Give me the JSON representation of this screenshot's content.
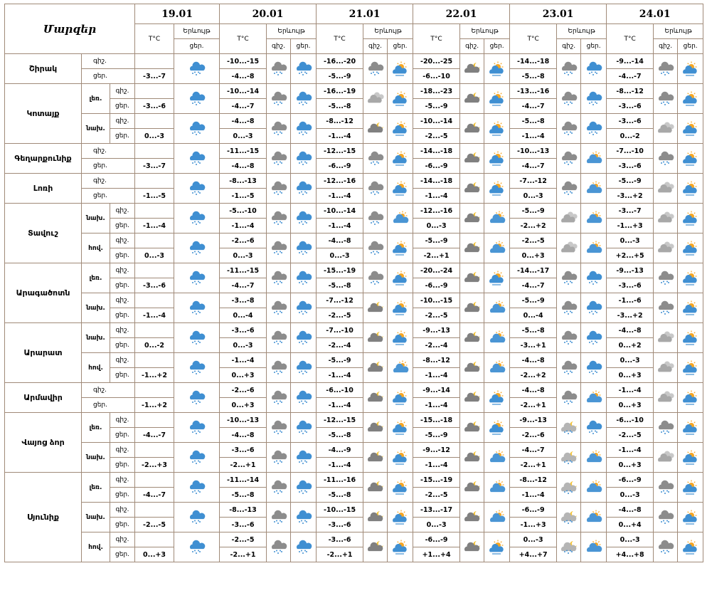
{
  "header": {
    "regions_label": "Մարզեր",
    "dates": [
      "19.01",
      "20.01",
      "21.01",
      "22.01",
      "23.01",
      "24.01"
    ],
    "temp_label": "T°C",
    "phen_label": "Երևույթ",
    "night": "գիշ.",
    "day": "ցեր."
  },
  "rows": [
    {
      "region": "Շիրակ",
      "subs": [
        {
          "d19": "-3...-7",
          "night": [
            "-10...-15",
            "-16...-20",
            "-20...-25",
            "-14...-18",
            "-9...-14"
          ],
          "day": [
            "-4...-8",
            "-5...-9",
            "-6...-10",
            "-5...-8",
            "-4...-7"
          ],
          "icons": [
            "S",
            "G",
            "S",
            "G",
            "P",
            "N",
            "P",
            "G",
            "S",
            "G",
            "P"
          ]
        }
      ]
    },
    {
      "region": "Կոտայք",
      "subs": [
        {
          "zone": "լեռ.",
          "d19": "-3...-6",
          "night": [
            "-10...-14",
            "-16...-19",
            "-18...-23",
            "-13...-16",
            "-8...-12"
          ],
          "day": [
            "-4...-7",
            "-5...-8",
            "-5...-9",
            "-4...-7",
            "-3...-6"
          ],
          "icons": [
            "S",
            "G",
            "S",
            "C",
            "P",
            "N",
            "P",
            "G",
            "S",
            "G",
            "P"
          ]
        },
        {
          "zone": "նախ.",
          "d19": "0...-3",
          "night": [
            "-4...-8",
            "-8...-12",
            "-10...-14",
            "-5...-8",
            "-3...-6"
          ],
          "day": [
            "0...-3",
            "-1...-4",
            "-2...-5",
            "-1...-4",
            "0...-2"
          ],
          "icons": [
            "S",
            "G",
            "S",
            "N",
            "P",
            "N",
            "P",
            "G",
            "S",
            "C",
            "P"
          ]
        }
      ]
    },
    {
      "region": "Գեղարքունիք",
      "subs": [
        {
          "d19": "-3...-7",
          "night": [
            "-11...-15",
            "-12...-15",
            "-14...-18",
            "-10...-13",
            "-7...-10"
          ],
          "day": [
            "-4...-8",
            "-6...-9",
            "-6...-9",
            "-4...-7",
            "-3...-6"
          ],
          "icons": [
            "S",
            "G",
            "S",
            "G",
            "P",
            "N",
            "P",
            "G",
            "B",
            "G",
            "P"
          ]
        }
      ]
    },
    {
      "region": "Լոռի",
      "subs": [
        {
          "d19": "-1...-5",
          "night": [
            "-8...-13",
            "-12...-16",
            "-14...-18",
            "-7...-12",
            "-5...-9"
          ],
          "day": [
            "-1...-5",
            "-1...-4",
            "-1...-4",
            "0...-3",
            "-3...+2"
          ],
          "icons": [
            "S",
            "G",
            "S",
            "G",
            "P",
            "N",
            "P",
            "G",
            "B",
            "C",
            "P"
          ]
        }
      ]
    },
    {
      "region": "Տավուշ",
      "subs": [
        {
          "zone": "նախ.",
          "d19": "-1...-4",
          "night": [
            "-5...-10",
            "-10...-14",
            "-12...-16",
            "-5...-9",
            "-3...-7"
          ],
          "day": [
            "-1...-4",
            "-1...-4",
            "0...-3",
            "-2...+2",
            "-1...+3"
          ],
          "icons": [
            "S",
            "G",
            "S",
            "G",
            "B",
            "N",
            "B",
            "C",
            "B",
            "C",
            "P"
          ]
        },
        {
          "zone": "հով.",
          "d19": "0...-3",
          "night": [
            "-2...-6",
            "-4...-8",
            "-5...-9",
            "-2...-5",
            "0...-3"
          ],
          "day": [
            "0...-3",
            "0...-3",
            "-2...+1",
            "0...+3",
            "+2...+5"
          ],
          "icons": [
            "S",
            "G",
            "S",
            "G",
            "P",
            "N",
            "B",
            "C",
            "B",
            "C",
            "P"
          ]
        }
      ]
    },
    {
      "region": "Արագածոտն",
      "subs": [
        {
          "zone": "լեռ.",
          "d19": "-3...-6",
          "night": [
            "-11...-15",
            "-15...-19",
            "-20...-24",
            "-14...-17",
            "-9...-13"
          ],
          "day": [
            "-4...-7",
            "-5...-8",
            "-6...-9",
            "-4...-7",
            "-3...-6"
          ],
          "icons": [
            "S",
            "G",
            "S",
            "G",
            "P",
            "N",
            "P",
            "G",
            "S",
            "G",
            "P"
          ]
        },
        {
          "zone": "նախ.",
          "d19": "-1...-4",
          "night": [
            "-3...-8",
            "-7...-12",
            "-10...-15",
            "-5...-9",
            "-1...-6"
          ],
          "day": [
            "0...-4",
            "-2...-5",
            "-2...-5",
            "0...-4",
            "-3...+2"
          ],
          "icons": [
            "S",
            "G",
            "S",
            "N",
            "P",
            "N",
            "B",
            "G",
            "S",
            "G",
            "P"
          ]
        }
      ]
    },
    {
      "region": "Արարատ",
      "subs": [
        {
          "zone": "նախ.",
          "d19": "0...-2",
          "night": [
            "-3...-6",
            "-7...-10",
            "-9...-13",
            "-5...-8",
            "-4...-8"
          ],
          "day": [
            "0...-3",
            "-2...-4",
            "-2...-4",
            "-3...+1",
            "0...+2"
          ],
          "icons": [
            "S",
            "G",
            "S",
            "N",
            "P",
            "N",
            "B",
            "G",
            "S",
            "C",
            "P"
          ]
        },
        {
          "zone": "հով.",
          "d19": "-1...+2",
          "night": [
            "-1...-4",
            "-5...-9",
            "-8...-12",
            "-4...-8",
            "0...-3"
          ],
          "day": [
            "0...+3",
            "-1...-4",
            "-1...-4",
            "-2...+2",
            "0...+3"
          ],
          "icons": [
            "S",
            "G",
            "S",
            "N",
            "B",
            "N",
            "B",
            "G",
            "S",
            "C",
            "P"
          ]
        }
      ]
    },
    {
      "region": "Արմավիր",
      "subs": [
        {
          "d19": "-1...+2",
          "night": [
            "-2...-6",
            "-6...-10",
            "-9...-14",
            "-4...-8",
            "-1...-4"
          ],
          "day": [
            "0...+3",
            "-1...-4",
            "-1...-4",
            "-2...+1",
            "0...+3"
          ],
          "icons": [
            "S",
            "G",
            "S",
            "N",
            "P",
            "N",
            "P",
            "G",
            "B",
            "C",
            "P"
          ]
        }
      ]
    },
    {
      "region": "Վայոց ձոր",
      "subs": [
        {
          "zone": "լեռ.",
          "d19": "-4...-7",
          "night": [
            "-10...-13",
            "-12...-15",
            "-15...-18",
            "-9...-13",
            "-6...-10"
          ],
          "day": [
            "-4...-8",
            "-5...-8",
            "-5...-9",
            "-2...-6",
            "-2...-5"
          ],
          "icons": [
            "S",
            "G",
            "S",
            "N",
            "P",
            "N",
            "P",
            "M",
            "S",
            "G",
            "P"
          ]
        },
        {
          "zone": "նախ.",
          "d19": "-2...+3",
          "night": [
            "-3...-6",
            "-4...-9",
            "-9...-12",
            "-4...-7",
            "-1...-4"
          ],
          "day": [
            "-2...+1",
            "-1...-4",
            "-1...-4",
            "-2...+1",
            "0...+3"
          ],
          "icons": [
            "S",
            "G",
            "S",
            "N",
            "P",
            "N",
            "B",
            "M",
            "B",
            "C",
            "P"
          ]
        }
      ]
    },
    {
      "region": "Սյունիք",
      "subs": [
        {
          "zone": "լեռ.",
          "d19": "-4...-7",
          "night": [
            "-11...-14",
            "-11...-16",
            "-15...-19",
            "-8...-12",
            "-6...-9"
          ],
          "day": [
            "-5...-8",
            "-5...-8",
            "-2...-5",
            "-1...-4",
            "0...-3"
          ],
          "icons": [
            "S",
            "G",
            "S",
            "N",
            "P",
            "N",
            "B",
            "M",
            "B",
            "G",
            "P"
          ]
        },
        {
          "zone": "նախ.",
          "d19": "-2...-5",
          "night": [
            "-8...-13",
            "-10...-15",
            "-13...-17",
            "-6...-9",
            "-4...-8"
          ],
          "day": [
            "-3...-6",
            "-3...-6",
            "0...-3",
            "-1...+3",
            "0...+4"
          ],
          "icons": [
            "S",
            "G",
            "S",
            "N",
            "P",
            "N",
            "B",
            "M",
            "B",
            "G",
            "P"
          ]
        },
        {
          "zone": "հով.",
          "d19": "0...+3",
          "night": [
            "-2...-5",
            "-3...-6",
            "-6...-9",
            "0...-3",
            "0...-3"
          ],
          "day": [
            "-2...+1",
            "-2...+1",
            "+1...+4",
            "+4...+7",
            "+4...+8"
          ],
          "icons": [
            "S",
            "G",
            "S",
            "N",
            "P",
            "N",
            "P",
            "M",
            "B",
            "G",
            "P"
          ]
        }
      ]
    }
  ]
}
